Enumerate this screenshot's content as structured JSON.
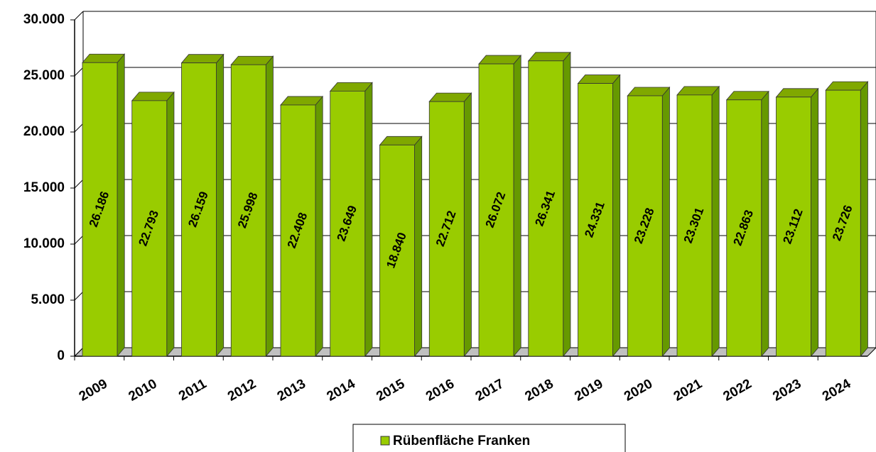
{
  "chart_data": {
    "type": "bar",
    "categories": [
      "2009",
      "2010",
      "2011",
      "2012",
      "2013",
      "2014",
      "2015",
      "2016",
      "2017",
      "2018",
      "2019",
      "2020",
      "2021",
      "2022",
      "2023",
      "2024"
    ],
    "series": [
      {
        "name": "Rübenfläche Franken",
        "color": "#99cc00",
        "values": [
          26186,
          22793,
          26159,
          25998,
          22408,
          23649,
          18840,
          22712,
          26072,
          26341,
          24331,
          23228,
          23301,
          22863,
          23112,
          23726
        ],
        "value_labels": [
          "26.186",
          "22.793",
          "26.159",
          "25.998",
          "22.408",
          "23.649",
          "18.840",
          "22.712",
          "26.072",
          "26.341",
          "24.331",
          "23.228",
          "23.301",
          "22.863",
          "23.112",
          "23.726"
        ]
      }
    ],
    "ylim": [
      0,
      30000
    ],
    "yticks": [
      {
        "value": 0,
        "label": "0"
      },
      {
        "value": 5000,
        "label": "5.000"
      },
      {
        "value": 10000,
        "label": "10.000"
      },
      {
        "value": 15000,
        "label": "15.000"
      },
      {
        "value": 20000,
        "label": "20.000"
      },
      {
        "value": 25000,
        "label": "25.000"
      },
      {
        "value": 30000,
        "label": "30.000"
      }
    ],
    "grid": true,
    "legend": "bottom"
  }
}
